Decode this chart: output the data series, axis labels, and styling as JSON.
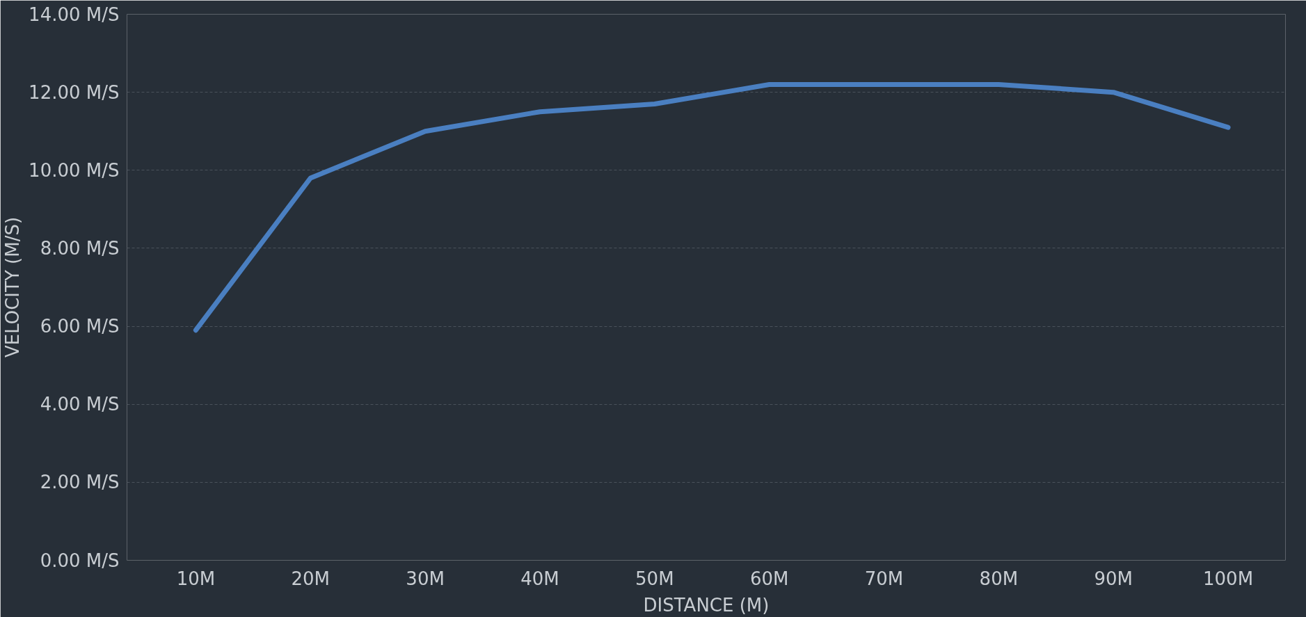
{
  "chart_data": {
    "type": "line",
    "xlabel": "DISTANCE (M)",
    "ylabel": "VELOCITY (M/S)",
    "categories": [
      "10M",
      "20M",
      "30M",
      "40M",
      "50M",
      "60M",
      "70M",
      "80M",
      "90M",
      "100M"
    ],
    "series": [
      {
        "color": "#4a7fc1",
        "values": [
          5.9,
          9.8,
          11.0,
          11.5,
          11.7,
          12.2,
          12.2,
          12.2,
          12.0,
          11.1
        ]
      }
    ],
    "ylim": [
      0,
      14
    ],
    "yticks": [
      {
        "value": 0,
        "label": "0.00 M/S"
      },
      {
        "value": 2,
        "label": "2.00 M/S"
      },
      {
        "value": 4,
        "label": "4.00 M/S"
      },
      {
        "value": 6,
        "label": "6.00 M/S"
      },
      {
        "value": 8,
        "label": "8.00 M/S"
      },
      {
        "value": 10,
        "label": "10.00 M/S"
      },
      {
        "value": 12,
        "label": "12.00 M/S"
      },
      {
        "value": 14,
        "label": "14.00 M/S"
      }
    ],
    "grid": "y",
    "marker": "none",
    "line_style": "solid"
  }
}
